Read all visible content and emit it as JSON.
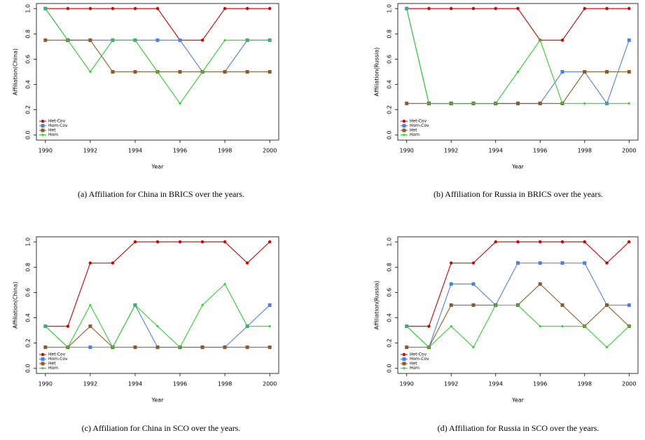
{
  "chart_data": [
    {
      "type": "line",
      "caption": "(a) Affiliation for China in BRICS over the years.",
      "xlabel": "Year",
      "ylabel": "Affiliation(China)",
      "x": [
        1990,
        1991,
        1992,
        1993,
        1994,
        1995,
        1996,
        1997,
        1998,
        1999,
        2000
      ],
      "xlim": [
        1989.6,
        2000.4
      ],
      "xticks": [
        1990,
        1992,
        1994,
        1996,
        1998,
        2000
      ],
      "ylim": [
        -0.04,
        1.04
      ],
      "yticks": [
        {
          "value": 0,
          "label": "0.0"
        },
        0.2,
        0.4,
        0.6,
        0.8,
        {
          "value": 1,
          "label": "1.0"
        }
      ],
      "legend": "bottom-left",
      "series": [
        {
          "name": "Het-Cov",
          "color": "#cc0000",
          "marker": "circle",
          "values": [
            1,
            1,
            1,
            1,
            1,
            1,
            0.75,
            0.75,
            1,
            1,
            1
          ]
        },
        {
          "name": "Hom-Cov",
          "color": "#4f7fdf",
          "marker": "square",
          "values": [
            1,
            0.75,
            0.75,
            0.75,
            0.75,
            0.75,
            0.75,
            0.5,
            0.5,
            0.75,
            0.75
          ]
        },
        {
          "name": "Het",
          "color": "#8c5a2b",
          "marker": "square",
          "values": [
            0.75,
            0.75,
            0.75,
            0.5,
            0.5,
            0.5,
            0.5,
            0.5,
            0.5,
            0.5,
            0.5
          ]
        },
        {
          "name": "Hom",
          "color": "#33cc33",
          "marker": "diamond",
          "values": [
            1,
            0.75,
            0.5,
            0.75,
            0.75,
            0.5,
            0.25,
            0.5,
            0.75,
            0.75,
            0.75
          ]
        }
      ]
    },
    {
      "type": "line",
      "caption": "(b) Affiliation for Russia in BRICS over the years.",
      "xlabel": "Year",
      "ylabel": "Affiliation(Russia)",
      "x": [
        1990,
        1991,
        1992,
        1993,
        1994,
        1995,
        1996,
        1997,
        1998,
        1999,
        2000
      ],
      "xlim": [
        1989.6,
        2000.4
      ],
      "xticks": [
        1990,
        1992,
        1994,
        1996,
        1998,
        2000
      ],
      "ylim": [
        -0.04,
        1.04
      ],
      "yticks": [
        {
          "value": 0,
          "label": "0.0"
        },
        0.2,
        0.4,
        0.6,
        0.8,
        {
          "value": 1,
          "label": "1.0"
        }
      ],
      "legend": "bottom-left",
      "series": [
        {
          "name": "Het-Cov",
          "color": "#cc0000",
          "marker": "circle",
          "values": [
            1,
            1,
            1,
            1,
            1,
            1,
            0.75,
            0.75,
            1,
            1,
            1
          ]
        },
        {
          "name": "Hom-Cov",
          "color": "#4f7fdf",
          "marker": "square",
          "values": [
            1,
            0.25,
            0.25,
            0.25,
            0.25,
            0.25,
            0.25,
            0.5,
            0.5,
            0.25,
            0.75
          ]
        },
        {
          "name": "Het",
          "color": "#8c5a2b",
          "marker": "square",
          "values": [
            0.25,
            0.25,
            0.25,
            0.25,
            0.25,
            0.25,
            0.25,
            0.25,
            0.5,
            0.5,
            0.5
          ]
        },
        {
          "name": "Hom",
          "color": "#33cc33",
          "marker": "diamond",
          "values": [
            1,
            0.25,
            0.25,
            0.25,
            0.25,
            0.5,
            0.75,
            0.25,
            0.25,
            0.25,
            0.25
          ]
        }
      ]
    },
    {
      "type": "line",
      "caption": "(c) Affiliation for China in SCO over the years.",
      "xlabel": "Year",
      "ylabel": "Affiliation(China)",
      "x": [
        1990,
        1991,
        1992,
        1993,
        1994,
        1995,
        1996,
        1997,
        1998,
        1999,
        2000
      ],
      "xlim": [
        1989.6,
        2000.4
      ],
      "xticks": [
        1990,
        1992,
        1994,
        1996,
        1998,
        2000
      ],
      "ylim": [
        -0.04,
        1.04
      ],
      "yticks": [
        {
          "value": 0,
          "label": "0.0"
        },
        0.2,
        0.4,
        0.6,
        0.8,
        {
          "value": 1,
          "label": "1.0"
        }
      ],
      "legend": "bottom-left",
      "series": [
        {
          "name": "Het-Cov",
          "color": "#cc0000",
          "marker": "circle",
          "values": [
            0.333,
            0.333,
            0.833,
            0.833,
            1,
            1,
            1,
            1,
            1,
            0.833,
            1
          ]
        },
        {
          "name": "Hom-Cov",
          "color": "#4f7fdf",
          "marker": "square",
          "values": [
            0.333,
            0.167,
            0.167,
            0.167,
            0.5,
            0.167,
            0.167,
            0.167,
            0.167,
            0.333,
            0.5
          ]
        },
        {
          "name": "Het",
          "color": "#8c5a2b",
          "marker": "square",
          "values": [
            0.167,
            0.167,
            0.333,
            0.167,
            0.167,
            0.167,
            0.167,
            0.167,
            0.167,
            0.167,
            0.167
          ]
        },
        {
          "name": "Hom",
          "color": "#33cc33",
          "marker": "diamond",
          "values": [
            0.333,
            0.167,
            0.5,
            0.167,
            0.5,
            0.333,
            0.167,
            0.5,
            0.667,
            0.333,
            0.333
          ]
        }
      ]
    },
    {
      "type": "line",
      "caption": "(d) Affiliation for Russia in SCO over the years.",
      "xlabel": "Year",
      "ylabel": "Affiliation(Russia)",
      "x": [
        1990,
        1991,
        1992,
        1993,
        1994,
        1995,
        1996,
        1997,
        1998,
        1999,
        2000
      ],
      "xlim": [
        1989.6,
        2000.4
      ],
      "xticks": [
        1990,
        1992,
        1994,
        1996,
        1998,
        2000
      ],
      "ylim": [
        -0.04,
        1.04
      ],
      "yticks": [
        {
          "value": 0,
          "label": "0.0"
        },
        0.2,
        0.4,
        0.6,
        0.8,
        {
          "value": 1,
          "label": "1.0"
        }
      ],
      "legend": "bottom-left",
      "series": [
        {
          "name": "Het-Cov",
          "color": "#cc0000",
          "marker": "circle",
          "values": [
            0.333,
            0.333,
            0.833,
            0.833,
            1,
            1,
            1,
            1,
            1,
            0.833,
            1
          ]
        },
        {
          "name": "Hom-Cov",
          "color": "#4f7fdf",
          "marker": "square",
          "values": [
            0.333,
            0.167,
            0.667,
            0.667,
            0.5,
            0.833,
            0.833,
            0.833,
            0.833,
            0.5,
            0.5
          ]
        },
        {
          "name": "Het",
          "color": "#8c5a2b",
          "marker": "square",
          "values": [
            0.167,
            0.167,
            0.5,
            0.5,
            0.5,
            0.5,
            0.667,
            0.5,
            0.333,
            0.5,
            0.333
          ]
        },
        {
          "name": "Hom",
          "color": "#33cc33",
          "marker": "diamond",
          "values": [
            0.333,
            0.167,
            0.333,
            0.167,
            0.5,
            0.5,
            0.333,
            0.333,
            0.333,
            0.167,
            0.333
          ]
        }
      ]
    }
  ]
}
